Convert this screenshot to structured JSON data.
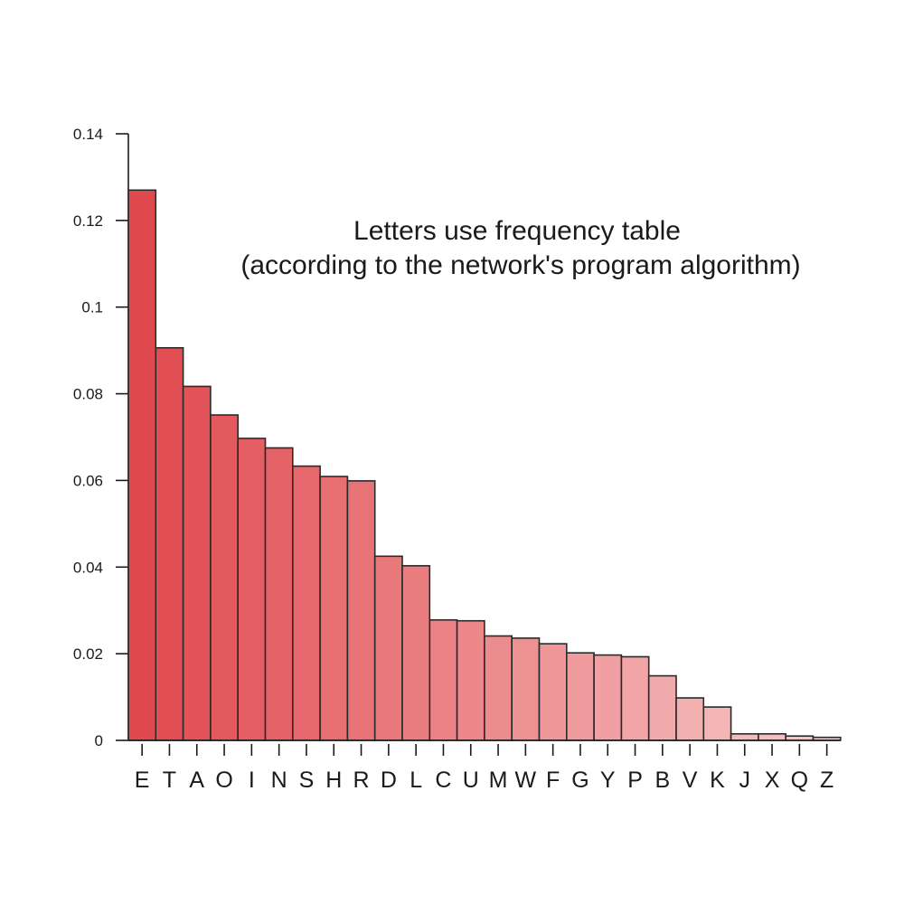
{
  "chart_data": {
    "type": "bar",
    "title_lines": [
      "Letters use frequency table",
      "(according to the network's program algorithm)"
    ],
    "xlabel": "",
    "ylabel": "",
    "categories": [
      "E",
      "T",
      "A",
      "O",
      "I",
      "N",
      "S",
      "H",
      "R",
      "D",
      "L",
      "C",
      "U",
      "M",
      "W",
      "F",
      "G",
      "Y",
      "P",
      "B",
      "V",
      "K",
      "J",
      "X",
      "Q",
      "Z"
    ],
    "values": [
      0.127,
      0.0906,
      0.0817,
      0.0751,
      0.0697,
      0.0675,
      0.0633,
      0.0609,
      0.0599,
      0.0425,
      0.0403,
      0.0278,
      0.0276,
      0.0241,
      0.0236,
      0.0223,
      0.0202,
      0.0197,
      0.0193,
      0.0149,
      0.0098,
      0.0077,
      0.0015,
      0.0015,
      0.001,
      0.0007
    ],
    "ylim": [
      0,
      0.14
    ],
    "y_ticks": [
      "0",
      "0.02",
      "0.04",
      "0.06",
      "0.08",
      "0.1",
      "0.12",
      "0.14"
    ],
    "y_tick_values": [
      0,
      0.02,
      0.04,
      0.06,
      0.08,
      0.1,
      0.12,
      0.14
    ],
    "grid": false,
    "legend": "none",
    "colors": {
      "bar_start": "#e04a4f",
      "bar_end": "#f8c9c9",
      "bar_stroke": "#2a2a2a"
    }
  }
}
